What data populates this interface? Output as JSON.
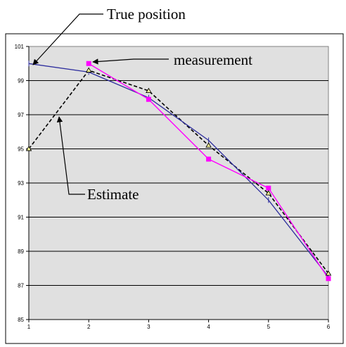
{
  "chart_data": {
    "type": "line",
    "x": [
      1,
      2,
      3,
      4,
      5,
      6
    ],
    "xlim": [
      1,
      6
    ],
    "ylim": [
      85,
      101
    ],
    "y_ticks": [
      85,
      87,
      89,
      91,
      93,
      95,
      97,
      99,
      101
    ],
    "x_ticks": [
      1,
      2,
      3,
      4,
      5,
      6
    ],
    "grid": "horizontal",
    "plot_background": "#e0e0e0",
    "series": [
      {
        "key": "true_position",
        "style": "solid, no markers",
        "color": "#2e2e9e",
        "points": [
          [
            1,
            100.0
          ],
          [
            2,
            99.5
          ],
          [
            3,
            98.0
          ],
          [
            4,
            95.5
          ],
          [
            5,
            92.0
          ],
          [
            6,
            87.5
          ]
        ]
      },
      {
        "key": "measurement",
        "style": "solid, square markers",
        "color": "#ff00ff",
        "points": [
          [
            2,
            100.0
          ],
          [
            3,
            97.9
          ],
          [
            4,
            94.4
          ],
          [
            5,
            92.7
          ],
          [
            6,
            87.4
          ]
        ]
      },
      {
        "key": "estimate",
        "style": "dashed, triangle markers",
        "color": "#000000",
        "marker_fill": "#ffff99",
        "points": [
          [
            1,
            95.0
          ],
          [
            2,
            99.6
          ],
          [
            3,
            98.4
          ],
          [
            4,
            95.2
          ],
          [
            5,
            92.4
          ],
          [
            6,
            87.7
          ]
        ]
      }
    ],
    "annotations": [
      {
        "key": "true_position",
        "text": "True position"
      },
      {
        "key": "measurement",
        "text": "measurement"
      },
      {
        "key": "estimate",
        "text": "Estimate"
      }
    ]
  }
}
